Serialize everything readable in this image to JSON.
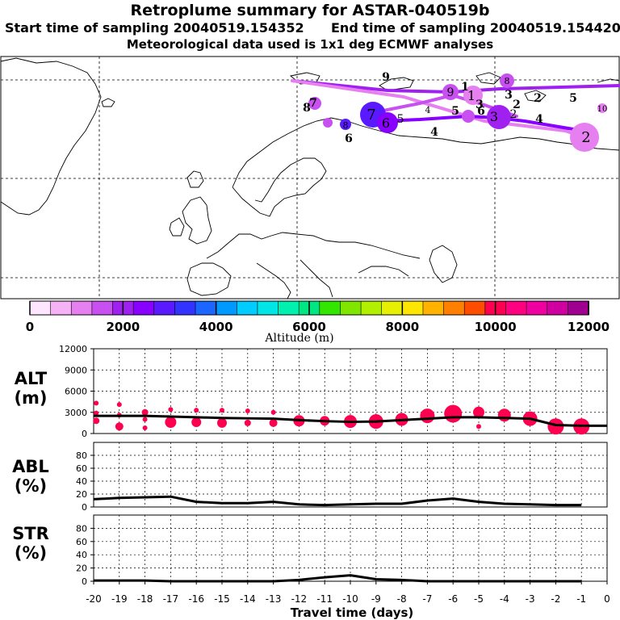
{
  "header": {
    "title": "Retroplume summary for ASTAR-040519b",
    "start_time": "Start time of sampling 20040519.154352",
    "end_time": "End time of sampling 20040519.154420",
    "met_data": "Meteorological data used is 1x1 deg ECMWF analyses"
  },
  "colorbar": {
    "ticks": [
      "0",
      "2000",
      "4000",
      "6000",
      "8000",
      "10000",
      "12000"
    ],
    "label": "Altitude (m)",
    "colors": [
      "#ffe6ff",
      "#f5b3f5",
      "#e680f0",
      "#c850f0",
      "#a020f0",
      "#8800ff",
      "#5a1aff",
      "#3333ff",
      "#1a66ff",
      "#0099ff",
      "#00ccff",
      "#00e6e6",
      "#00f0b0",
      "#00e680",
      "#33e600",
      "#80e600",
      "#b3f000",
      "#e6f000",
      "#ffe600",
      "#ffb300",
      "#ff8000",
      "#ff4d00",
      "#ff0050",
      "#ff0080",
      "#f000a0",
      "#d000a0",
      "#a00090"
    ]
  },
  "map": {
    "labels": [
      {
        "t": "9",
        "c": "black"
      },
      {
        "t": "8",
        "c": "black"
      },
      {
        "t": "1",
        "c": "black"
      },
      {
        "t": "3",
        "c": "black"
      },
      {
        "t": "2",
        "c": "black"
      },
      {
        "t": "5",
        "c": "black"
      },
      {
        "t": "4",
        "c": "black"
      },
      {
        "t": "6",
        "c": "black"
      },
      {
        "t": "5",
        "c": "black"
      },
      {
        "t": "7",
        "c": "black"
      },
      {
        "t": "6",
        "c": "black"
      },
      {
        "t": "3",
        "c": "black"
      },
      {
        "t": "2",
        "c": "black"
      },
      {
        "t": "4",
        "c": "black"
      }
    ],
    "plume_numbers": [
      "7",
      "8",
      "6",
      "5",
      "4",
      "9",
      "1",
      "3",
      "2",
      "8",
      "10",
      "2"
    ]
  },
  "chart_data": [
    {
      "type": "line",
      "panel": "ALT",
      "ylabel": "ALT\n(m)",
      "ylabel_line1": "ALT",
      "ylabel_line2": "(m)",
      "ylim": [
        0,
        12000
      ],
      "yticks": [
        "12000",
        "9000",
        "6000",
        "3000",
        "0"
      ],
      "ytick_values": [
        12000,
        9000,
        6000,
        3000,
        0
      ],
      "x": [
        -20,
        -19,
        -18,
        -17,
        -16,
        -15,
        -14,
        -13,
        -12,
        -11,
        -10,
        -9,
        -8,
        -7,
        -6,
        -5,
        -4,
        -3,
        -2,
        -1,
        0
      ],
      "values": [
        2500,
        2500,
        2500,
        2400,
        2300,
        2200,
        2150,
        2100,
        1900,
        1750,
        1650,
        1700,
        1900,
        2100,
        2300,
        2300,
        2200,
        2100,
        1200,
        1100,
        1100
      ],
      "markers": [
        {
          "x": -19.9,
          "y": 4300,
          "r": 3
        },
        {
          "x": -19.9,
          "y": 2900,
          "r": 3
        },
        {
          "x": -19.9,
          "y": 1800,
          "r": 4
        },
        {
          "x": -19,
          "y": 4100,
          "r": 3
        },
        {
          "x": -19,
          "y": 2600,
          "r": 3
        },
        {
          "x": -19,
          "y": 1000,
          "r": 5
        },
        {
          "x": -18,
          "y": 3000,
          "r": 4
        },
        {
          "x": -18,
          "y": 2000,
          "r": 3
        },
        {
          "x": -18,
          "y": 800,
          "r": 3
        },
        {
          "x": -17,
          "y": 3400,
          "r": 3
        },
        {
          "x": -17,
          "y": 1600,
          "r": 7
        },
        {
          "x": -16,
          "y": 3300,
          "r": 3
        },
        {
          "x": -16,
          "y": 1600,
          "r": 6
        },
        {
          "x": -15,
          "y": 3300,
          "r": 3
        },
        {
          "x": -15,
          "y": 1500,
          "r": 6
        },
        {
          "x": -14,
          "y": 3200,
          "r": 3
        },
        {
          "x": -14,
          "y": 1500,
          "r": 4
        },
        {
          "x": -13,
          "y": 3000,
          "r": 3
        },
        {
          "x": -13,
          "y": 1500,
          "r": 5
        },
        {
          "x": -12,
          "y": 1800,
          "r": 7
        },
        {
          "x": -11,
          "y": 1800,
          "r": 6
        },
        {
          "x": -10,
          "y": 1700,
          "r": 8
        },
        {
          "x": -9,
          "y": 1700,
          "r": 9
        },
        {
          "x": -8,
          "y": 2000,
          "r": 8
        },
        {
          "x": -7,
          "y": 2500,
          "r": 9
        },
        {
          "x": -6,
          "y": 2800,
          "r": 11
        },
        {
          "x": -5,
          "y": 3000,
          "r": 7
        },
        {
          "x": -5,
          "y": 1000,
          "r": 3
        },
        {
          "x": -4,
          "y": 2600,
          "r": 8
        },
        {
          "x": -3,
          "y": 2100,
          "r": 9
        },
        {
          "x": -2,
          "y": 1000,
          "r": 10
        },
        {
          "x": -1,
          "y": 1000,
          "r": 10
        }
      ],
      "marker_color": "#ff0050"
    },
    {
      "type": "line",
      "panel": "ABL",
      "ylabel_line1": "ABL",
      "ylabel_line2": "(%)",
      "ylim": [
        0,
        100
      ],
      "yticks": [
        "80",
        "60",
        "40",
        "20",
        "0"
      ],
      "ytick_values": [
        80,
        60,
        40,
        20,
        0
      ],
      "x": [
        -20,
        -19,
        -18,
        -17,
        -16,
        -15,
        -14,
        -13,
        -12,
        -11,
        -10,
        -9,
        -8,
        -7,
        -6,
        -5,
        -4,
        -3,
        -2,
        -1
      ],
      "values": [
        12,
        14,
        15,
        16,
        8,
        6,
        6,
        8,
        4,
        3,
        4,
        5,
        5,
        10,
        13,
        8,
        5,
        4,
        3,
        3
      ]
    },
    {
      "type": "line",
      "panel": "STR",
      "ylabel_line1": "STR",
      "ylabel_line2": "(%)",
      "ylim": [
        0,
        100
      ],
      "yticks": [
        "80",
        "60",
        "40",
        "20",
        "0"
      ],
      "ytick_values": [
        80,
        60,
        40,
        20,
        0
      ],
      "x": [
        -20,
        -19,
        -18,
        -17,
        -16,
        -15,
        -14,
        -13,
        -12,
        -11,
        -10,
        -9,
        -8,
        -7,
        -6,
        -5,
        -4,
        -3,
        -2,
        -1
      ],
      "values": [
        1,
        1,
        1,
        0,
        0,
        0,
        0,
        0,
        2,
        6,
        9,
        3,
        2,
        0,
        0,
        0,
        0,
        0,
        0,
        0
      ],
      "xlabel": "Travel time (days)",
      "xticks": [
        "-20",
        "-19",
        "-18",
        "-17",
        "-16",
        "-15",
        "-14",
        "-13",
        "-12",
        "-11",
        "-10",
        "-9",
        "-8",
        "-7",
        "-6",
        "-5",
        "-4",
        "-3",
        "-2",
        "-1",
        "0"
      ],
      "xtick_values": [
        -20,
        -19,
        -18,
        -17,
        -16,
        -15,
        -14,
        -13,
        -12,
        -11,
        -10,
        -9,
        -8,
        -7,
        -6,
        -5,
        -4,
        -3,
        -2,
        -1,
        0
      ]
    }
  ]
}
